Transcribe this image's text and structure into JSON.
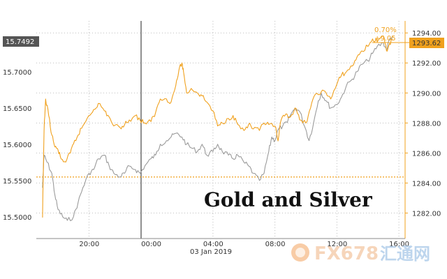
{
  "chart_data": {
    "type": "line",
    "title": "Gold and Silver",
    "x_date_label": "03 Jan 2019",
    "x_ticks": [
      "20:00",
      "00:00",
      "04:00",
      "08:00",
      "12:00",
      "16:00"
    ],
    "left_axis": {
      "ticks": [
        "15.5000",
        "15.5500",
        "15.6000",
        "15.6500",
        "15.7000"
      ],
      "ylim": [
        15.47,
        15.77
      ],
      "current": "15.7492"
    },
    "right_axis": {
      "ticks": [
        "1282.00",
        "1284.00",
        "1286.00",
        "1288.00",
        "1290.00",
        "1292.00",
        "1294.00"
      ],
      "ylim": [
        1280.3,
        1294.8
      ],
      "current": "1293.62"
    },
    "reference_level": 1284.4,
    "change_pct": "0.70%",
    "change_abs": "+9.05",
    "series": [
      {
        "color": "#9b9b9b",
        "axis": "left",
        "points": [
          [
            17.0,
            15.54
          ],
          [
            17.1,
            15.585
          ],
          [
            17.3,
            15.575
          ],
          [
            17.6,
            15.56
          ],
          [
            17.8,
            15.53
          ],
          [
            18.0,
            15.51
          ],
          [
            18.3,
            15.5
          ],
          [
            18.6,
            15.495
          ],
          [
            19.0,
            15.5
          ],
          [
            19.3,
            15.52
          ],
          [
            19.6,
            15.54
          ],
          [
            20.0,
            15.56
          ],
          [
            20.3,
            15.565
          ],
          [
            20.6,
            15.58
          ],
          [
            21.0,
            15.585
          ],
          [
            21.3,
            15.57
          ],
          [
            21.6,
            15.56
          ],
          [
            22.0,
            15.555
          ],
          [
            22.3,
            15.56
          ],
          [
            22.6,
            15.57
          ],
          [
            23.0,
            15.565
          ],
          [
            23.3,
            15.56
          ],
          [
            23.6,
            15.57
          ],
          [
            24.0,
            15.58
          ],
          [
            24.3,
            15.585
          ],
          [
            24.6,
            15.6
          ],
          [
            25.0,
            15.605
          ],
          [
            25.3,
            15.61
          ],
          [
            25.6,
            15.615
          ],
          [
            26.0,
            15.61
          ],
          [
            26.3,
            15.6
          ],
          [
            26.6,
            15.595
          ],
          [
            27.0,
            15.59
          ],
          [
            27.3,
            15.6
          ],
          [
            27.6,
            15.585
          ],
          [
            28.0,
            15.59
          ],
          [
            28.3,
            15.6
          ],
          [
            28.6,
            15.59
          ],
          [
            29.0,
            15.585
          ],
          [
            29.3,
            15.58
          ],
          [
            29.6,
            15.585
          ],
          [
            30.0,
            15.575
          ],
          [
            30.3,
            15.57
          ],
          [
            30.6,
            15.56
          ],
          [
            31.0,
            15.55
          ],
          [
            31.3,
            15.56
          ],
          [
            31.6,
            15.59
          ],
          [
            31.8,
            15.61
          ],
          [
            32.0,
            15.605
          ],
          [
            32.2,
            15.62
          ],
          [
            32.5,
            15.625
          ],
          [
            32.8,
            15.63
          ],
          [
            33.0,
            15.64
          ],
          [
            33.3,
            15.65
          ],
          [
            33.6,
            15.645
          ],
          [
            34.0,
            15.62
          ],
          [
            34.2,
            15.605
          ],
          [
            34.5,
            15.63
          ],
          [
            34.8,
            15.66
          ],
          [
            35.0,
            15.67
          ],
          [
            35.3,
            15.66
          ],
          [
            35.6,
            15.65
          ],
          [
            36.0,
            15.655
          ],
          [
            36.3,
            15.665
          ],
          [
            36.6,
            15.68
          ],
          [
            37.0,
            15.69
          ],
          [
            37.3,
            15.7
          ],
          [
            37.6,
            15.71
          ],
          [
            38.0,
            15.715
          ],
          [
            38.3,
            15.725
          ],
          [
            38.6,
            15.735
          ],
          [
            39.0,
            15.74
          ],
          [
            39.2,
            15.73
          ],
          [
            39.4,
            15.745
          ],
          [
            39.6,
            15.749
          ]
        ]
      },
      {
        "color": "#f0a11e",
        "axis": "right",
        "points": [
          [
            17.0,
            1281.7
          ],
          [
            17.1,
            1287.5
          ],
          [
            17.2,
            1289.6
          ],
          [
            17.4,
            1288.5
          ],
          [
            17.6,
            1287.2
          ],
          [
            17.8,
            1286.4
          ],
          [
            18.0,
            1286.2
          ],
          [
            18.2,
            1285.6
          ],
          [
            18.5,
            1285.4
          ],
          [
            18.8,
            1286.0
          ],
          [
            19.0,
            1286.6
          ],
          [
            19.3,
            1287.2
          ],
          [
            19.6,
            1287.8
          ],
          [
            20.0,
            1288.5
          ],
          [
            20.3,
            1288.9
          ],
          [
            20.6,
            1289.3
          ],
          [
            21.0,
            1288.8
          ],
          [
            21.3,
            1288.4
          ],
          [
            21.6,
            1287.8
          ],
          [
            22.0,
            1287.7
          ],
          [
            22.3,
            1287.9
          ],
          [
            22.6,
            1288.2
          ],
          [
            23.0,
            1288.5
          ],
          [
            23.3,
            1288.2
          ],
          [
            23.6,
            1288.0
          ],
          [
            24.0,
            1288.1
          ],
          [
            24.3,
            1288.7
          ],
          [
            24.6,
            1289.6
          ],
          [
            25.0,
            1289.6
          ],
          [
            25.3,
            1289.4
          ],
          [
            25.6,
            1290.5
          ],
          [
            25.8,
            1291.5
          ],
          [
            26.0,
            1292.0
          ],
          [
            26.1,
            1291.4
          ],
          [
            26.3,
            1290.0
          ],
          [
            26.6,
            1290.3
          ],
          [
            27.0,
            1290.0
          ],
          [
            27.3,
            1289.8
          ],
          [
            27.6,
            1289.4
          ],
          [
            28.0,
            1288.8
          ],
          [
            28.3,
            1287.8
          ],
          [
            28.6,
            1288.0
          ],
          [
            29.0,
            1288.3
          ],
          [
            29.3,
            1288.5
          ],
          [
            29.6,
            1287.9
          ],
          [
            30.0,
            1287.5
          ],
          [
            30.3,
            1287.9
          ],
          [
            30.6,
            1287.6
          ],
          [
            31.0,
            1287.5
          ],
          [
            31.3,
            1288.0
          ],
          [
            31.6,
            1287.9
          ],
          [
            32.0,
            1287.8
          ],
          [
            32.2,
            1286.8
          ],
          [
            32.4,
            1288.2
          ],
          [
            32.7,
            1288.6
          ],
          [
            33.0,
            1288.4
          ],
          [
            33.3,
            1289.0
          ],
          [
            33.6,
            1288.2
          ],
          [
            34.0,
            1288.0
          ],
          [
            34.3,
            1289.0
          ],
          [
            34.6,
            1289.9
          ],
          [
            35.0,
            1290.1
          ],
          [
            35.3,
            1290.0
          ],
          [
            35.6,
            1289.6
          ],
          [
            36.0,
            1290.6
          ],
          [
            36.3,
            1291.2
          ],
          [
            36.6,
            1291.4
          ],
          [
            37.0,
            1291.8
          ],
          [
            37.3,
            1292.4
          ],
          [
            37.6,
            1292.8
          ],
          [
            38.0,
            1293.1
          ],
          [
            38.3,
            1293.6
          ],
          [
            38.6,
            1293.4
          ],
          [
            39.0,
            1293.8
          ],
          [
            39.2,
            1292.8
          ],
          [
            39.4,
            1293.3
          ],
          [
            39.6,
            1293.6
          ]
        ]
      }
    ],
    "grid": true,
    "legend": "none"
  },
  "watermark": {
    "text": "FX678",
    "cn": "汇通网"
  }
}
